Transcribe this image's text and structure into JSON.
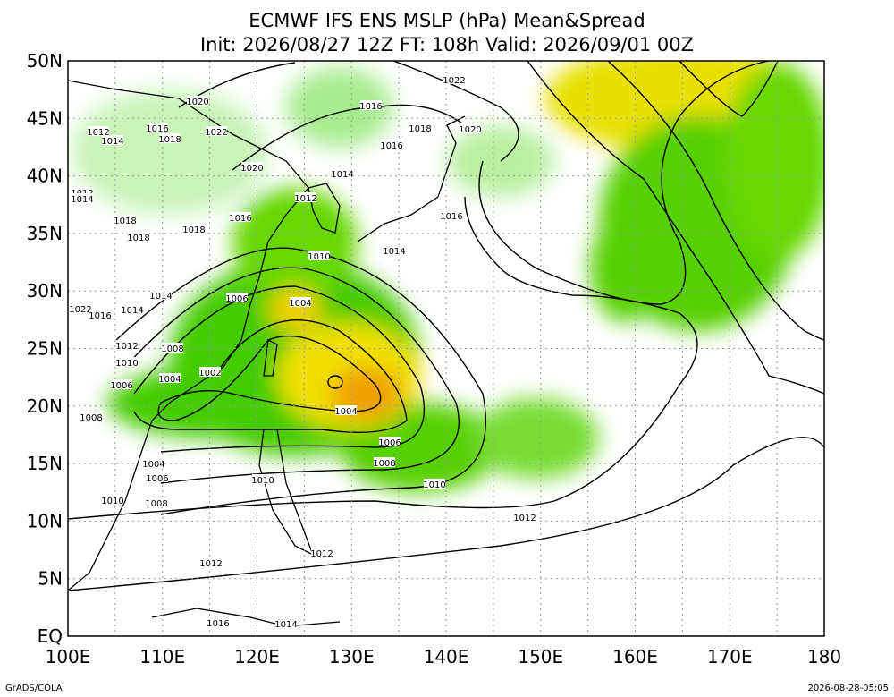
{
  "header": {
    "title": "ECMWF IFS ENS MSLP (hPa) Mean&Spread",
    "subtitle": "Init: 2026/08/27 12Z  FT: 108h  Valid: 2026/09/01 00Z"
  },
  "map": {
    "lat_labels": [
      "50N",
      "45N",
      "40N",
      "35N",
      "30N",
      "25N",
      "20N",
      "15N",
      "10N",
      "5N",
      "EQ"
    ],
    "lon_labels": [
      "100E",
      "110E",
      "120E",
      "130E",
      "140E",
      "150E",
      "160E",
      "170E",
      "180"
    ],
    "contour_labels": [
      "1020",
      "1012",
      "1014",
      "1016",
      "1018",
      "1022",
      "1016",
      "1022",
      "1018",
      "1020",
      "1016",
      "1020",
      "1014",
      "1012",
      "1012",
      "1016",
      "1018",
      "1018",
      "1018",
      "1016",
      "1014",
      "1010",
      "1006",
      "1004",
      "1014",
      "1014",
      "1022",
      "1016",
      "1012",
      "1008",
      "1010",
      "1002",
      "1006",
      "1004",
      "1004",
      "1008",
      "1006",
      "1008",
      "1004",
      "1006",
      "1010",
      "1010",
      "1008",
      "1010",
      "1012",
      "1012",
      "1012",
      "1014",
      "1016",
      "1014"
    ]
  },
  "footer": {
    "left": "GrADS/COLA",
    "right": "2026-08-28-05:05"
  }
}
